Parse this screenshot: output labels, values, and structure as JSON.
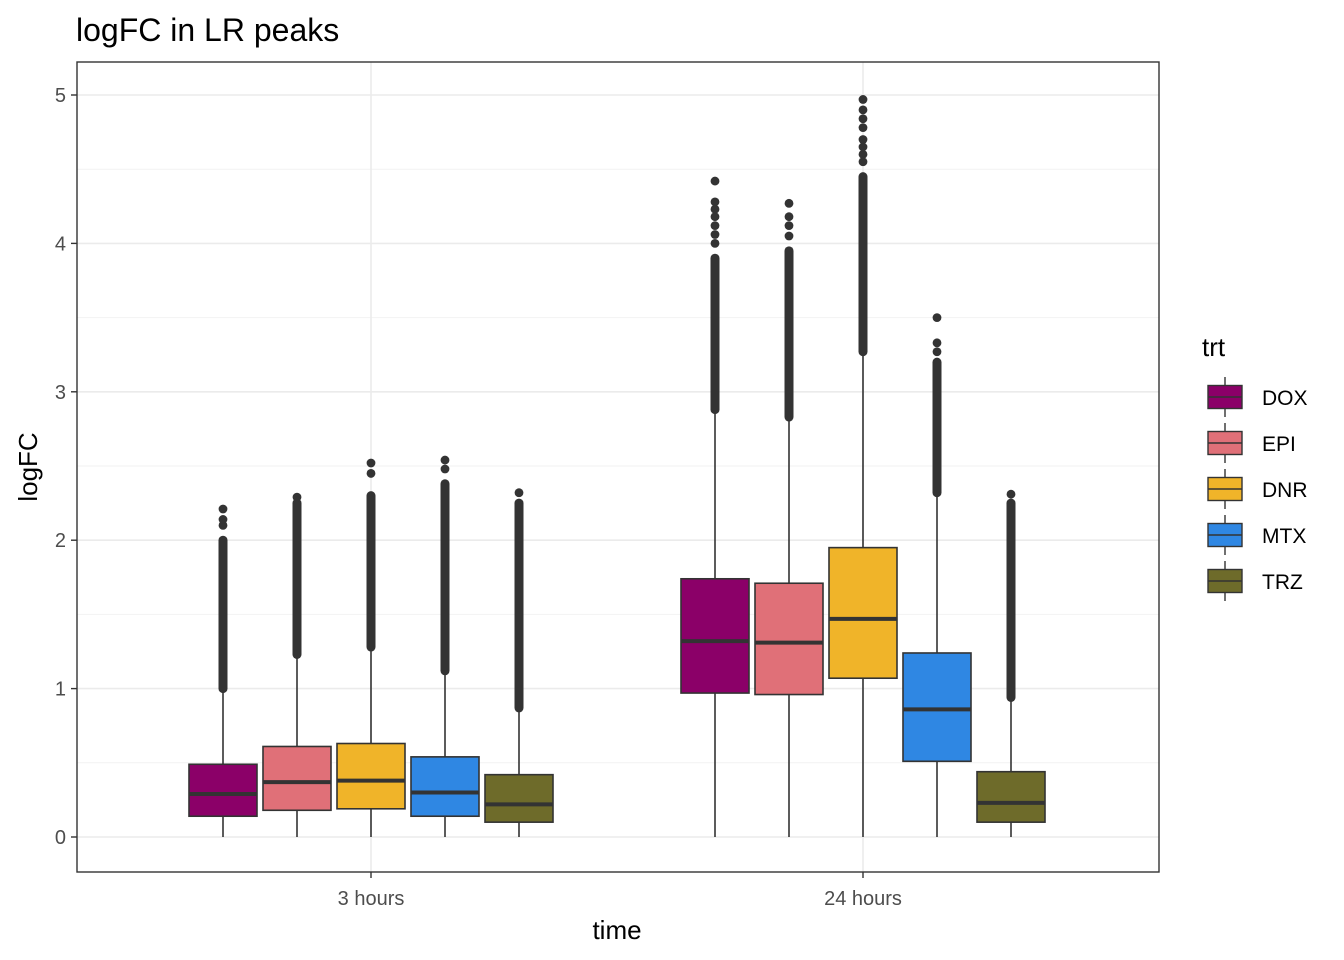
{
  "chart_data": {
    "type": "box",
    "title": "logFC in LR peaks",
    "xlabel": "time",
    "ylabel": "logFC",
    "ylim": [
      -0.25,
      5.25
    ],
    "yticks": [
      0,
      1,
      2,
      3,
      4,
      5
    ],
    "grid": true,
    "legend": {
      "title": "trt",
      "placement": "right"
    },
    "categories": [
      "3 hours",
      "24 hours"
    ],
    "series": [
      {
        "name": "DOX",
        "color": "#8b0068",
        "boxes": [
          {
            "whisker_low": 0.0,
            "q1": 0.14,
            "median": 0.29,
            "q3": 0.49,
            "whisker_high": 1.0,
            "outliers_from": 1.0,
            "outliers_to": 2.0,
            "outlier_max": 2.21,
            "sparse_outliers": [
              2.1,
              2.14,
              2.21
            ]
          },
          {
            "whisker_low": 0.0,
            "q1": 0.97,
            "median": 1.32,
            "q3": 1.74,
            "whisker_high": 2.88,
            "outliers_from": 2.88,
            "outliers_to": 3.9,
            "outlier_max": 4.42,
            "sparse_outliers": [
              4.0,
              4.06,
              4.12,
              4.18,
              4.23,
              4.28,
              4.42
            ]
          }
        ]
      },
      {
        "name": "EPI",
        "color": "#e07078",
        "boxes": [
          {
            "whisker_low": 0.0,
            "q1": 0.18,
            "median": 0.37,
            "q3": 0.61,
            "whisker_high": 1.23,
            "outliers_from": 1.23,
            "outliers_to": 2.25,
            "outlier_max": 2.29,
            "sparse_outliers": [
              2.29
            ]
          },
          {
            "whisker_low": 0.0,
            "q1": 0.96,
            "median": 1.31,
            "q3": 1.71,
            "whisker_high": 2.83,
            "outliers_from": 2.83,
            "outliers_to": 3.95,
            "outlier_max": 4.27,
            "sparse_outliers": [
              4.05,
              4.12,
              4.18,
              4.27
            ]
          }
        ]
      },
      {
        "name": "DNR",
        "color": "#f0b429",
        "boxes": [
          {
            "whisker_low": 0.0,
            "q1": 0.19,
            "median": 0.38,
            "q3": 0.63,
            "whisker_high": 1.28,
            "outliers_from": 1.28,
            "outliers_to": 2.3,
            "outlier_max": 2.52,
            "sparse_outliers": [
              2.45,
              2.52
            ]
          },
          {
            "whisker_low": 0.0,
            "q1": 1.07,
            "median": 1.47,
            "q3": 1.95,
            "whisker_high": 3.27,
            "outliers_from": 3.27,
            "outliers_to": 4.45,
            "outlier_max": 4.97,
            "sparse_outliers": [
              4.55,
              4.6,
              4.65,
              4.7,
              4.78,
              4.84,
              4.9,
              4.97
            ]
          }
        ]
      },
      {
        "name": "MTX",
        "color": "#2f87e3",
        "boxes": [
          {
            "whisker_low": 0.0,
            "q1": 0.14,
            "median": 0.3,
            "q3": 0.54,
            "whisker_high": 1.12,
            "outliers_from": 1.12,
            "outliers_to": 2.38,
            "outlier_max": 2.54,
            "sparse_outliers": [
              2.48,
              2.54
            ]
          },
          {
            "whisker_low": 0.0,
            "q1": 0.51,
            "median": 0.86,
            "q3": 1.24,
            "whisker_high": 2.32,
            "outliers_from": 2.32,
            "outliers_to": 3.2,
            "outlier_max": 3.5,
            "sparse_outliers": [
              3.27,
              3.33,
              3.5
            ]
          }
        ]
      },
      {
        "name": "TRZ",
        "color": "#6e6b2a",
        "boxes": [
          {
            "whisker_low": 0.0,
            "q1": 0.1,
            "median": 0.22,
            "q3": 0.42,
            "whisker_high": 0.87,
            "outliers_from": 0.87,
            "outliers_to": 2.25,
            "outlier_max": 2.32,
            "sparse_outliers": [
              2.32
            ]
          },
          {
            "whisker_low": 0.0,
            "q1": 0.1,
            "median": 0.23,
            "q3": 0.44,
            "whisker_high": 0.94,
            "outliers_from": 0.94,
            "outliers_to": 2.25,
            "outlier_max": 2.31,
            "sparse_outliers": [
              2.31
            ]
          }
        ]
      }
    ]
  }
}
